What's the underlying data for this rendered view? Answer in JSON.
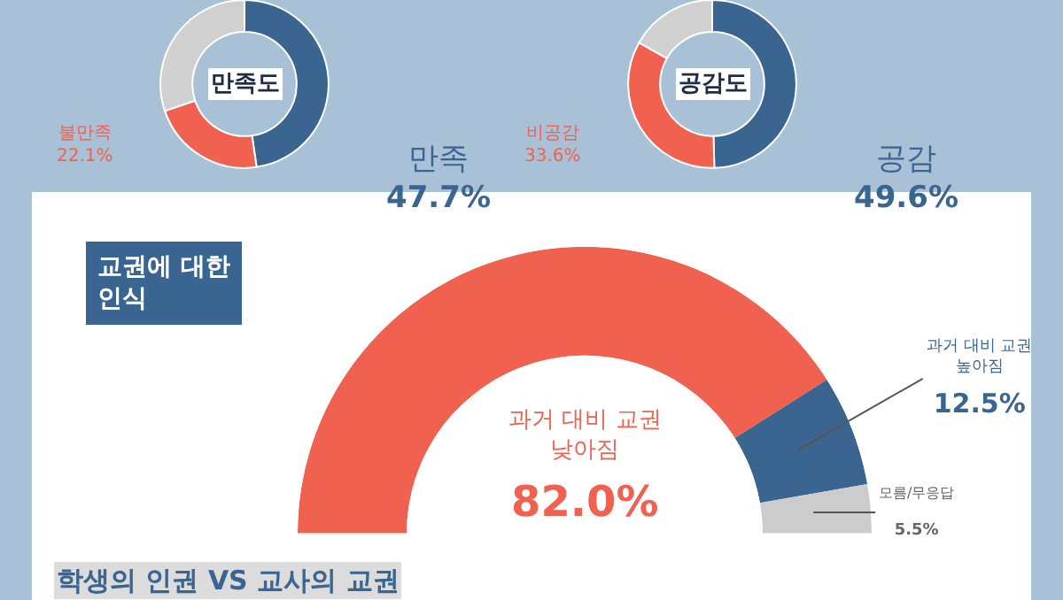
{
  "chart_data": [
    {
      "type": "donut",
      "title": "만족도",
      "categories": [
        "만족",
        "불만족",
        null
      ],
      "values": [
        47.7,
        22.1,
        30.2
      ],
      "value_labels": [
        "47.7%",
        "22.1%",
        null
      ],
      "colors": [
        "#3a6591",
        "#f0624f",
        "#d0d0d0"
      ]
    },
    {
      "type": "donut",
      "title": "공감도",
      "categories": [
        "공감",
        "비공감",
        null
      ],
      "values": [
        49.6,
        33.6,
        16.8
      ],
      "value_labels": [
        "49.6%",
        "33.6%",
        null
      ],
      "colors": [
        "#3a6591",
        "#f0624f",
        "#d0d0d0"
      ]
    },
    {
      "type": "donut",
      "title": "교권에 대한\n인식",
      "categories": [
        "과거 대비 교권\n낮아짐",
        "과거 대비 교권\n높아짐",
        "모름/무응답"
      ],
      "values": [
        82.0,
        12.5,
        5.5
      ],
      "value_labels": [
        "82.0%",
        "12.5%",
        "5.5%"
      ],
      "colors": [
        "#f0624f",
        "#3a6591",
        "#cccccc"
      ],
      "annotations": [
        "학생의 인권 VS 교사의 교권"
      ]
    }
  ]
}
